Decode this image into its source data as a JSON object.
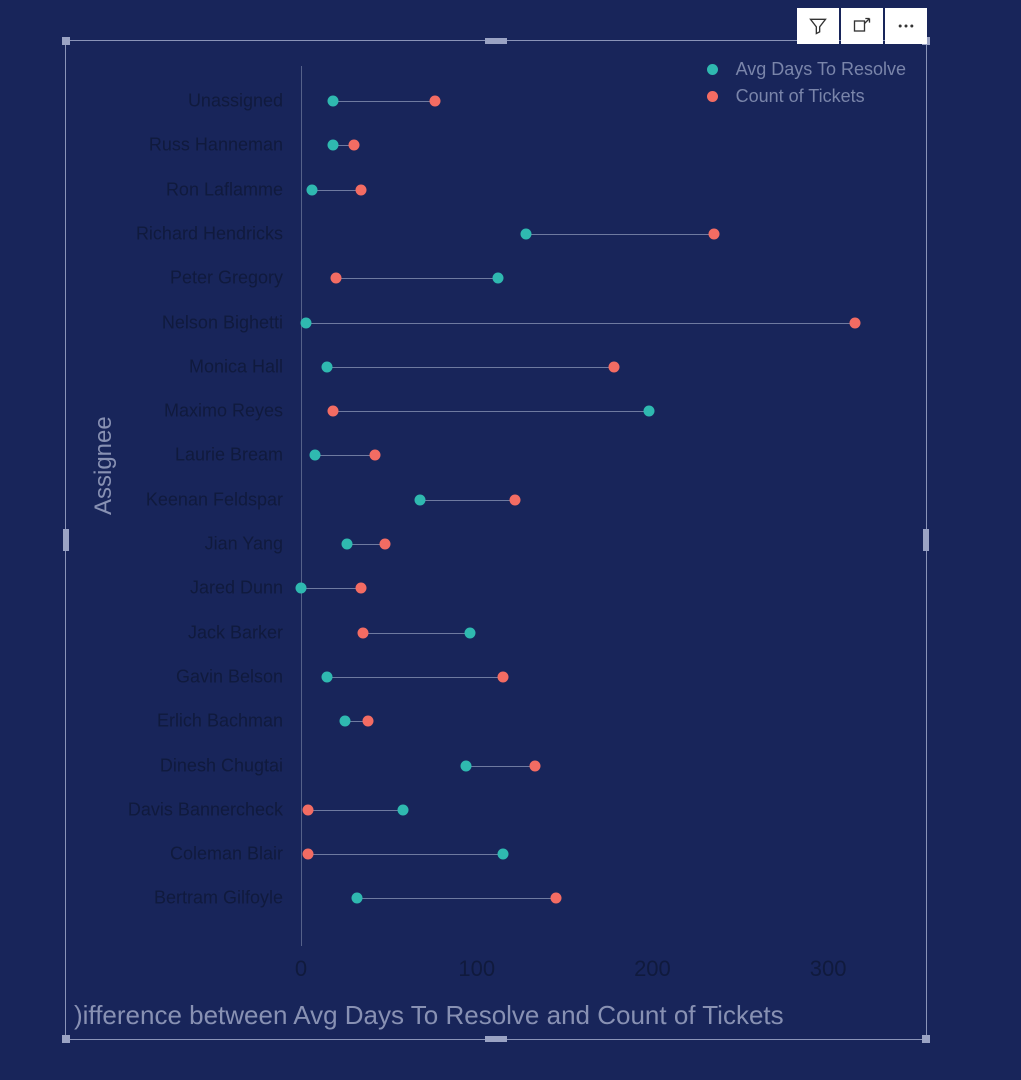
{
  "toolbar": {
    "filter_title": "Filter",
    "focus_title": "Focus mode",
    "more_title": "More options"
  },
  "chart": {
    "type": "dumbbell",
    "background_color": "#18255a",
    "frame_border_color": "#8a94b8",
    "handle_color": "#9aa3c4",
    "axis_line_color": "#556189",
    "connector_color": "#6e7aa0",
    "label_color": "#101a3d",
    "axis_title_color": "#8891b3",
    "legend_text_color": "#7a85aa",
    "y_axis_title": "Assignee",
    "x_axis_title": ")ifference between Avg Days To Resolve and Count of Tickets",
    "x_min": 0,
    "x_max": 350,
    "x_ticks": [
      0,
      100,
      200,
      300
    ],
    "row_height": 44.3,
    "row_top_offset": 25,
    "dot_size": 11,
    "label_fontsize": 18,
    "tick_fontsize": 22,
    "axis_title_fontsize_y": 24,
    "axis_title_fontsize_x": 26,
    "series": [
      {
        "name": "Avg Days To Resolve",
        "color": "#2fb9b0"
      },
      {
        "name": "Count of Tickets",
        "color": "#f36c63"
      }
    ],
    "categories": [
      {
        "label": "Unassigned",
        "avg_days": 18,
        "count": 76
      },
      {
        "label": "Russ Hanneman",
        "avg_days": 18,
        "count": 30
      },
      {
        "label": "Ron Laflamme",
        "avg_days": 6,
        "count": 34
      },
      {
        "label": "Richard Hendricks",
        "avg_days": 128,
        "count": 235
      },
      {
        "label": "Peter Gregory",
        "avg_days": 112,
        "count": 20
      },
      {
        "label": "Nelson Bighetti",
        "avg_days": 3,
        "count": 315
      },
      {
        "label": "Monica Hall",
        "avg_days": 15,
        "count": 178
      },
      {
        "label": "Maximo Reyes",
        "avg_days": 198,
        "count": 18
      },
      {
        "label": "Laurie Bream",
        "avg_days": 8,
        "count": 42
      },
      {
        "label": "Keenan Feldspar",
        "avg_days": 68,
        "count": 122
      },
      {
        "label": "Jian Yang",
        "avg_days": 26,
        "count": 48
      },
      {
        "label": "Jared Dunn",
        "avg_days": 0,
        "count": 34
      },
      {
        "label": "Jack Barker",
        "avg_days": 96,
        "count": 35
      },
      {
        "label": "Gavin Belson",
        "avg_days": 15,
        "count": 115
      },
      {
        "label": "Erlich Bachman",
        "avg_days": 25,
        "count": 38
      },
      {
        "label": "Dinesh Chugtai",
        "avg_days": 94,
        "count": 133
      },
      {
        "label": "Davis Bannercheck",
        "avg_days": 58,
        "count": 4
      },
      {
        "label": "Coleman Blair",
        "avg_days": 115,
        "count": 4
      },
      {
        "label": "Bertram Gilfoyle",
        "avg_days": 32,
        "count": 145
      }
    ]
  }
}
